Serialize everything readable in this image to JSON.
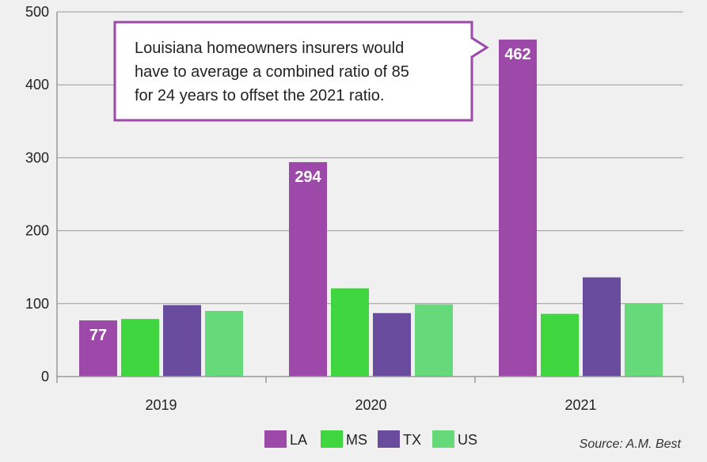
{
  "chart_data": {
    "type": "bar",
    "categories": [
      "2019",
      "2020",
      "2021"
    ],
    "series": [
      {
        "name": "LA",
        "color": "#9c49a9",
        "values": [
          77,
          294,
          462
        ]
      },
      {
        "name": "MS",
        "color": "#3fd63f",
        "values": [
          79,
          121,
          86
        ]
      },
      {
        "name": "TX",
        "color": "#6a4c9e",
        "values": [
          98,
          87,
          136
        ]
      },
      {
        "name": "US",
        "color": "#66d97a",
        "values": [
          90,
          99,
          100
        ]
      }
    ],
    "data_labels": [
      {
        "series": "LA",
        "category": "2019",
        "text": "77"
      },
      {
        "series": "LA",
        "category": "2020",
        "text": "294"
      },
      {
        "series": "LA",
        "category": "2021",
        "text": "462"
      }
    ],
    "ylim": [
      0,
      500
    ],
    "yticks": [
      0,
      100,
      200,
      300,
      400,
      500
    ],
    "grid": true,
    "legend_placement": "bottom-center",
    "annotation": {
      "lines": [
        "Louisiana homeowners insurers would",
        "have to average a combined ratio of 85",
        "for 24 years to offset the 2021 ratio."
      ],
      "border_color": "#9c49a9"
    },
    "source": "Source: A.M. Best",
    "title": "",
    "xlabel": "",
    "ylabel": ""
  }
}
